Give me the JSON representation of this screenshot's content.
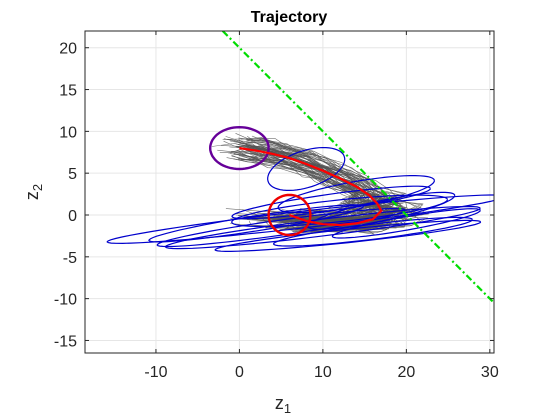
{
  "chart_data": {
    "type": "line",
    "title": "Trajectory",
    "xlabel": {
      "base": "z",
      "sub": "1"
    },
    "ylabel": {
      "base": "z",
      "sub": "2"
    },
    "xlim": [
      -18.5,
      30.5
    ],
    "ylim": [
      -16.5,
      22
    ],
    "xticks": [
      -10,
      0,
      10,
      20,
      30
    ],
    "yticks": [
      -15,
      -10,
      -5,
      0,
      5,
      10,
      15,
      20
    ],
    "grid": true,
    "colors": {
      "trajectories": "#555555",
      "mean_path": "#ff0000",
      "covariance_ellipses": "#0000cc",
      "start_region": "#660099",
      "target_region": "#ee0000",
      "boundary_line": "#00dd00",
      "axes": "#262626",
      "grid": "#e6e6e6"
    },
    "boundary_line": {
      "x": [
        -2,
        30.5
      ],
      "y": [
        22,
        -10.5
      ]
    },
    "start_region": {
      "center": [
        0,
        8
      ],
      "radii": [
        3.5,
        2.5
      ],
      "angle": 0
    },
    "target_region": {
      "center": [
        6,
        0
      ],
      "radii": [
        2.5,
        2.4
      ],
      "angle": 0
    },
    "mean_path": {
      "x": [
        0,
        2,
        4,
        6,
        8,
        10,
        12,
        14,
        15.5,
        16.5,
        17,
        16,
        14,
        12,
        10,
        8,
        6
      ],
      "y": [
        8,
        7.7,
        7.3,
        6.8,
        6.1,
        5.3,
        4.4,
        3.4,
        2.4,
        1.4,
        0.5,
        -0.5,
        -1.0,
        -1.2,
        -1.1,
        -0.7,
        0
      ]
    },
    "covariance_ellipses": [
      {
        "center": [
          8,
          5.5
        ],
        "radii": [
          4.8,
          2.2
        ],
        "angle": 18
      },
      {
        "center": [
          14,
          2.5
        ],
        "radii": [
          9.5,
          1.5
        ],
        "angle": 10
      },
      {
        "center": [
          12,
          0.5
        ],
        "radii": [
          13,
          1.3
        ],
        "angle": 6
      },
      {
        "center": [
          8,
          -0.5
        ],
        "radii": [
          24,
          1.0
        ],
        "angle": 6.5
      },
      {
        "center": [
          10,
          -1.5
        ],
        "radii": [
          19,
          1.0
        ],
        "angle": 7
      },
      {
        "center": [
          5,
          -1.5
        ],
        "radii": [
          15,
          0.9
        ],
        "angle": 8
      },
      {
        "center": [
          2,
          -1
        ],
        "radii": [
          13,
          0.9
        ],
        "angle": 9
      },
      {
        "center": [
          16,
          -2
        ],
        "radii": [
          12,
          0.9
        ],
        "angle": 7
      },
      {
        "center": [
          17,
          0.5
        ],
        "radii": [
          9,
          1.2
        ],
        "angle": 12
      },
      {
        "center": [
          13,
          -2.5
        ],
        "radii": [
          16,
          0.8
        ],
        "angle": 6
      },
      {
        "center": [
          11,
          1.5
        ],
        "radii": [
          12,
          1.0
        ],
        "angle": 8
      },
      {
        "center": [
          20,
          -1
        ],
        "radii": [
          9,
          0.8
        ],
        "angle": 10
      }
    ]
  }
}
